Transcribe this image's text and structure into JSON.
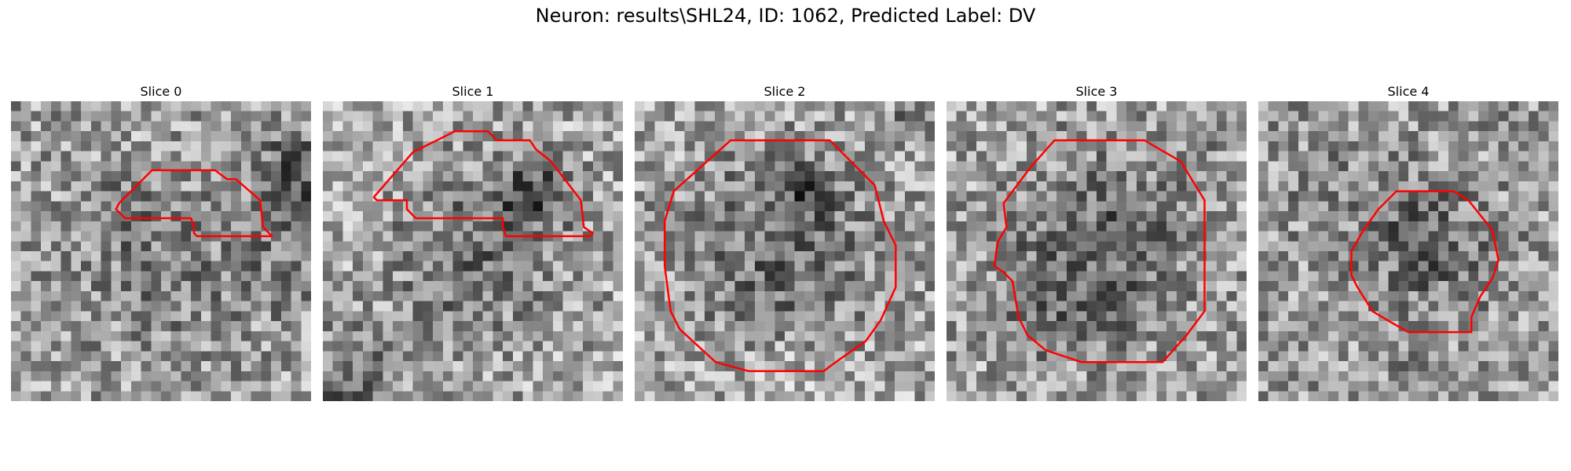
{
  "figure": {
    "suptitle": "Neuron: results\\SHL24, ID: 1062, Predicted Label: DV"
  },
  "colors": {
    "contour": "#ff0000",
    "background": "#ffffff"
  },
  "panels": [
    {
      "title": "Slice 0",
      "seed": 11,
      "base": 0.62,
      "blobs": [
        [
          0.5,
          0.55,
          0.32,
          -0.12
        ],
        [
          0.95,
          0.25,
          0.18,
          -0.28
        ],
        [
          0.35,
          0.38,
          0.12,
          -0.15
        ],
        [
          0.9,
          0.55,
          0.2,
          -0.12
        ]
      ],
      "contour": [
        [
          0.47,
          0.23
        ],
        [
          0.68,
          0.23
        ],
        [
          0.72,
          0.26
        ],
        [
          0.75,
          0.26
        ],
        [
          0.83,
          0.33
        ],
        [
          0.84,
          0.42
        ],
        [
          0.87,
          0.45
        ],
        [
          0.86,
          0.45
        ],
        [
          0.85,
          0.45
        ],
        [
          0.62,
          0.45
        ],
        [
          0.61,
          0.44
        ],
        [
          0.61,
          0.42
        ],
        [
          0.6,
          0.39
        ],
        [
          0.38,
          0.39
        ],
        [
          0.35,
          0.36
        ],
        [
          0.36,
          0.34
        ]
      ]
    },
    {
      "title": "Slice 1",
      "seed": 23,
      "base": 0.66,
      "blobs": [
        [
          0.55,
          0.45,
          0.38,
          -0.18
        ],
        [
          0.7,
          0.3,
          0.14,
          -0.28
        ],
        [
          0.08,
          0.95,
          0.22,
          -0.25
        ],
        [
          0.45,
          0.6,
          0.25,
          -0.08
        ]
      ],
      "contour": [
        [
          0.44,
          0.1
        ],
        [
          0.48,
          0.1
        ],
        [
          0.55,
          0.1
        ],
        [
          0.58,
          0.13
        ],
        [
          0.69,
          0.13
        ],
        [
          0.71,
          0.16
        ],
        [
          0.76,
          0.2
        ],
        [
          0.86,
          0.33
        ],
        [
          0.87,
          0.42
        ],
        [
          0.9,
          0.44
        ],
        [
          0.89,
          0.45
        ],
        [
          0.61,
          0.45
        ],
        [
          0.6,
          0.42
        ],
        [
          0.6,
          0.39
        ],
        [
          0.31,
          0.39
        ],
        [
          0.28,
          0.36
        ],
        [
          0.28,
          0.33
        ],
        [
          0.18,
          0.33
        ],
        [
          0.17,
          0.32
        ],
        [
          0.3,
          0.17
        ],
        [
          0.38,
          0.13
        ]
      ]
    },
    {
      "title": "Slice 2",
      "seed": 37,
      "base": 0.66,
      "blobs": [
        [
          0.5,
          0.48,
          0.42,
          -0.24
        ],
        [
          0.58,
          0.3,
          0.12,
          -0.2
        ],
        [
          0.95,
          0.05,
          0.1,
          -0.25
        ],
        [
          0.5,
          0.95,
          0.2,
          0.1
        ]
      ],
      "contour": [
        [
          0.32,
          0.13
        ],
        [
          0.65,
          0.13
        ],
        [
          0.8,
          0.28
        ],
        [
          0.83,
          0.4
        ],
        [
          0.87,
          0.48
        ],
        [
          0.87,
          0.62
        ],
        [
          0.82,
          0.73
        ],
        [
          0.77,
          0.8
        ],
        [
          0.67,
          0.87
        ],
        [
          0.63,
          0.9
        ],
        [
          0.38,
          0.9
        ],
        [
          0.27,
          0.87
        ],
        [
          0.15,
          0.76
        ],
        [
          0.12,
          0.7
        ],
        [
          0.1,
          0.55
        ],
        [
          0.1,
          0.4
        ],
        [
          0.13,
          0.3
        ]
      ]
    },
    {
      "title": "Slice 3",
      "seed": 51,
      "base": 0.64,
      "blobs": [
        [
          0.5,
          0.5,
          0.38,
          -0.26
        ],
        [
          0.3,
          0.75,
          0.14,
          -0.12
        ],
        [
          0.85,
          0.15,
          0.12,
          -0.1
        ]
      ],
      "contour": [
        [
          0.36,
          0.13
        ],
        [
          0.66,
          0.13
        ],
        [
          0.71,
          0.16
        ],
        [
          0.78,
          0.2
        ],
        [
          0.86,
          0.33
        ],
        [
          0.86,
          0.7
        ],
        [
          0.8,
          0.78
        ],
        [
          0.72,
          0.87
        ],
        [
          0.45,
          0.87
        ],
        [
          0.33,
          0.83
        ],
        [
          0.27,
          0.78
        ],
        [
          0.24,
          0.72
        ],
        [
          0.22,
          0.6
        ],
        [
          0.19,
          0.57
        ],
        [
          0.16,
          0.55
        ],
        [
          0.17,
          0.47
        ],
        [
          0.2,
          0.42
        ],
        [
          0.19,
          0.34
        ],
        [
          0.28,
          0.22
        ]
      ]
    },
    {
      "title": "Slice 4",
      "seed": 67,
      "base": 0.6,
      "blobs": [
        [
          0.55,
          0.48,
          0.24,
          -0.22
        ],
        [
          0.5,
          0.85,
          0.1,
          -0.08
        ],
        [
          0.2,
          0.3,
          0.15,
          -0.08
        ]
      ],
      "contour": [
        [
          0.46,
          0.3
        ],
        [
          0.65,
          0.3
        ],
        [
          0.7,
          0.33
        ],
        [
          0.78,
          0.43
        ],
        [
          0.8,
          0.53
        ],
        [
          0.78,
          0.59
        ],
        [
          0.74,
          0.65
        ],
        [
          0.71,
          0.72
        ],
        [
          0.71,
          0.77
        ],
        [
          0.5,
          0.77
        ],
        [
          0.43,
          0.73
        ],
        [
          0.38,
          0.7
        ],
        [
          0.33,
          0.62
        ],
        [
          0.31,
          0.58
        ],
        [
          0.31,
          0.5
        ],
        [
          0.35,
          0.43
        ],
        [
          0.4,
          0.36
        ]
      ]
    }
  ]
}
